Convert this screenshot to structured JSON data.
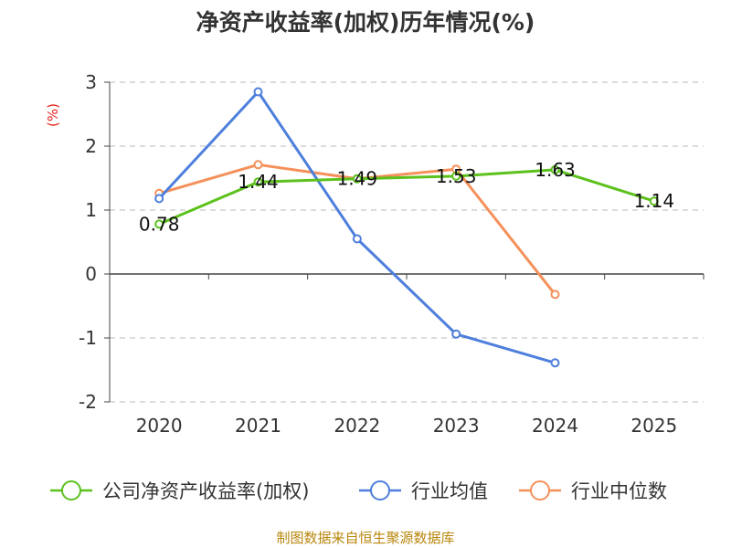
{
  "chart_data": {
    "type": "line",
    "title": "净资产收益率(加权)历年情况(%)",
    "ylabel": "(%)",
    "xlabel": "",
    "categories": [
      "2020",
      "2021",
      "2022",
      "2023",
      "2024",
      "2025"
    ],
    "ylim": [
      -2,
      3
    ],
    "yticks": [
      3,
      2,
      1,
      0,
      -1,
      -2
    ],
    "grid": true,
    "legend_position": "bottom",
    "series": [
      {
        "name": "公司净资产收益率(加权)",
        "color": "#5cc11d",
        "values": [
          0.78,
          1.44,
          1.49,
          1.53,
          1.63,
          1.14
        ],
        "labels": [
          "0.78",
          "1.44",
          "1.49",
          "1.53",
          "1.63",
          "1.14"
        ]
      },
      {
        "name": "行业均值",
        "color": "#4e7fdc",
        "values": [
          1.18,
          2.85,
          0.55,
          -0.94,
          -1.39,
          null
        ]
      },
      {
        "name": "行业中位数",
        "color": "#f5905a",
        "values": [
          1.26,
          1.71,
          1.49,
          1.64,
          -0.32,
          null
        ]
      }
    ],
    "source": "制图数据来自恒生聚源数据库"
  }
}
